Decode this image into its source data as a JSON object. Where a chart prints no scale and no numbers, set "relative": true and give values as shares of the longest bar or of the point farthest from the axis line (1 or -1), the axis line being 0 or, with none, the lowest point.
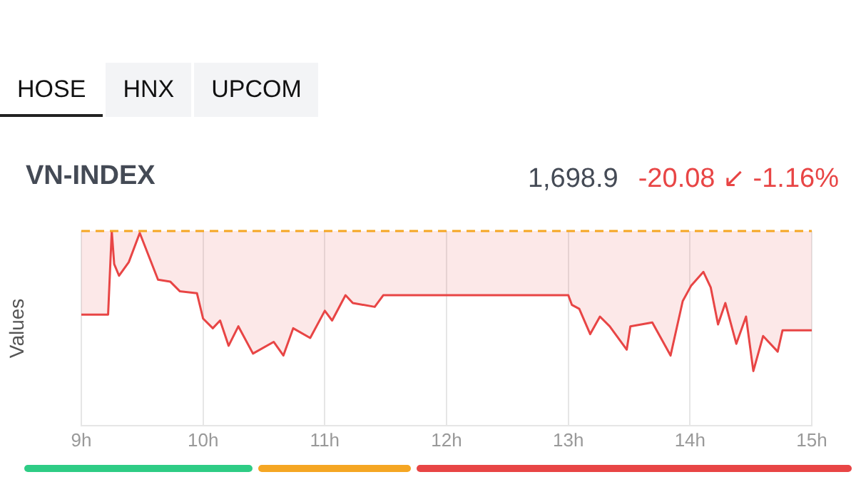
{
  "chart_data": {
    "type": "line",
    "title": "VN-INDEX",
    "subtitle": "1,698.9",
    "ylabel": "Values",
    "annotations": [
      "-20.08 ↙ -1.16%",
      "HOSE",
      "HNX",
      "UPCOM"
    ],
    "relative": true,
    "grid": "x",
    "legend": false,
    "marker": "none",
    "xlim": [
      9,
      15
    ],
    "xticks": [
      {
        "value": 9,
        "label": "9h"
      },
      {
        "value": 10,
        "label": "10h"
      },
      {
        "value": 11,
        "label": "11h"
      },
      {
        "value": 12,
        "label": "12h"
      },
      {
        "value": 13,
        "label": "13h"
      },
      {
        "value": 14,
        "label": "14h"
      },
      {
        "value": 15,
        "label": "15h"
      }
    ],
    "ref_lines": [
      {
        "axis": "y",
        "value": 1,
        "color": "#f5a623",
        "line_style": "dashed"
      }
    ],
    "series": [
      {
        "color": "#e84545",
        "x": [
          9.0,
          9.22,
          9.25,
          9.27,
          9.31,
          9.39,
          9.48,
          9.63,
          9.73,
          9.81,
          9.95,
          10.0,
          10.08,
          10.14,
          10.21,
          10.29,
          10.41,
          10.58,
          10.66,
          10.74,
          10.88,
          11.0,
          11.06,
          11.17,
          11.23,
          11.41,
          11.48,
          13.0,
          13.03,
          13.09,
          13.18,
          13.26,
          13.34,
          13.48,
          13.51,
          13.69,
          13.84,
          13.94,
          14.01,
          14.11,
          14.17,
          14.23,
          14.29,
          14.38,
          14.46,
          14.52,
          14.6,
          14.72,
          14.76,
          15.0
        ],
        "values": [
          0.57,
          0.57,
          1.0,
          0.83,
          0.77,
          0.84,
          0.99,
          0.75,
          0.74,
          0.69,
          0.68,
          0.55,
          0.5,
          0.54,
          0.41,
          0.51,
          0.37,
          0.43,
          0.36,
          0.5,
          0.45,
          0.59,
          0.54,
          0.67,
          0.63,
          0.61,
          0.67,
          0.67,
          0.62,
          0.6,
          0.47,
          0.56,
          0.51,
          0.39,
          0.51,
          0.53,
          0.36,
          0.64,
          0.72,
          0.79,
          0.71,
          0.52,
          0.63,
          0.42,
          0.56,
          0.28,
          0.46,
          0.38,
          0.49,
          0.49
        ]
      }
    ]
  }
}
